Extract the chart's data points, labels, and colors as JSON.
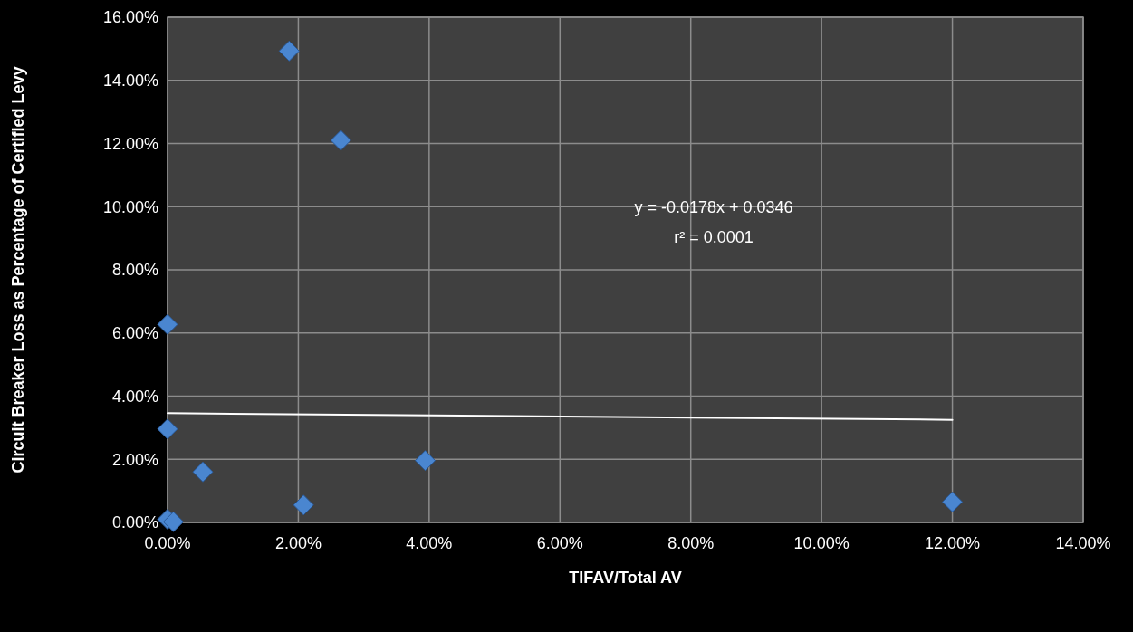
{
  "chart_data": {
    "type": "scatter",
    "xlabel": "TIFAV/Total AV",
    "ylabel": "Circuit Breaker Loss as Percentage of Certified Levy",
    "xlim": [
      0,
      14
    ],
    "ylim": [
      0,
      16
    ],
    "xticks": [
      {
        "value": 0,
        "label": "0.00%"
      },
      {
        "value": 2,
        "label": "2.00%"
      },
      {
        "value": 4,
        "label": "4.00%"
      },
      {
        "value": 6,
        "label": "6.00%"
      },
      {
        "value": 8,
        "label": "8.00%"
      },
      {
        "value": 10,
        "label": "10.00%"
      },
      {
        "value": 12,
        "label": "12.00%"
      },
      {
        "value": 14,
        "label": "14.00%"
      }
    ],
    "yticks": [
      {
        "value": 0,
        "label": "0.00%"
      },
      {
        "value": 2,
        "label": "2.00%"
      },
      {
        "value": 4,
        "label": "4.00%"
      },
      {
        "value": 6,
        "label": "6.00%"
      },
      {
        "value": 8,
        "label": "8.00%"
      },
      {
        "value": 10,
        "label": "10.00%"
      },
      {
        "value": 12,
        "label": "12.00%"
      },
      {
        "value": 14,
        "label": "14.00%"
      },
      {
        "value": 16,
        "label": "16.00%"
      }
    ],
    "grid": true,
    "series": [
      {
        "color": "#4a86d0",
        "marker": "diamond",
        "x": [
          0,
          0,
          0,
          0.09,
          0.54,
          1.86,
          2.08,
          2.65,
          3.94,
          12.0
        ],
        "values": [
          6.27,
          2.96,
          0.1,
          0.02,
          1.6,
          14.93,
          0.55,
          12.1,
          1.96,
          0.65
        ]
      },
      {
        "type": "line",
        "color": "#ffffff",
        "marker": "none",
        "x": [
          0,
          12
        ],
        "values": [
          3.46,
          3.25
        ]
      }
    ],
    "annotations": [
      "y = -0.0178x + 0.0346",
      "r² = 0.0001"
    ]
  }
}
